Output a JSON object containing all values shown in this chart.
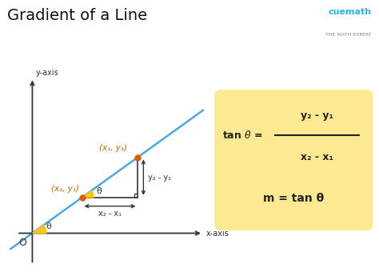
{
  "title": "Gradient of a Line",
  "title_fontsize": 14,
  "bg_color": "#ffffff",
  "line_color": "#4da6e8",
  "line_width": 1.8,
  "point_color": "#e05a00",
  "axis_label_color": "#333333",
  "formula_box_color": "#fde992",
  "theta_angle_color": "#ffc107",
  "point1_label": "(x₁, y₁)",
  "point2_label": "(x₁, y₁)",
  "xdiff_label": "x₂ - x₁",
  "ydiff_label": "y₂ - y₁",
  "formula_tan_lhs": "tan θ = ",
  "formula_num": "y₂ - y₁",
  "formula_den": "x₂ - x₁",
  "formula_m": "m = tan θ",
  "theta_label": "θ",
  "xlabel": "x-axis",
  "ylabel": "y-axis",
  "origin_label": "O",
  "cuemath_color": "#29b6e8",
  "cuemath_sub_color": "#888888"
}
